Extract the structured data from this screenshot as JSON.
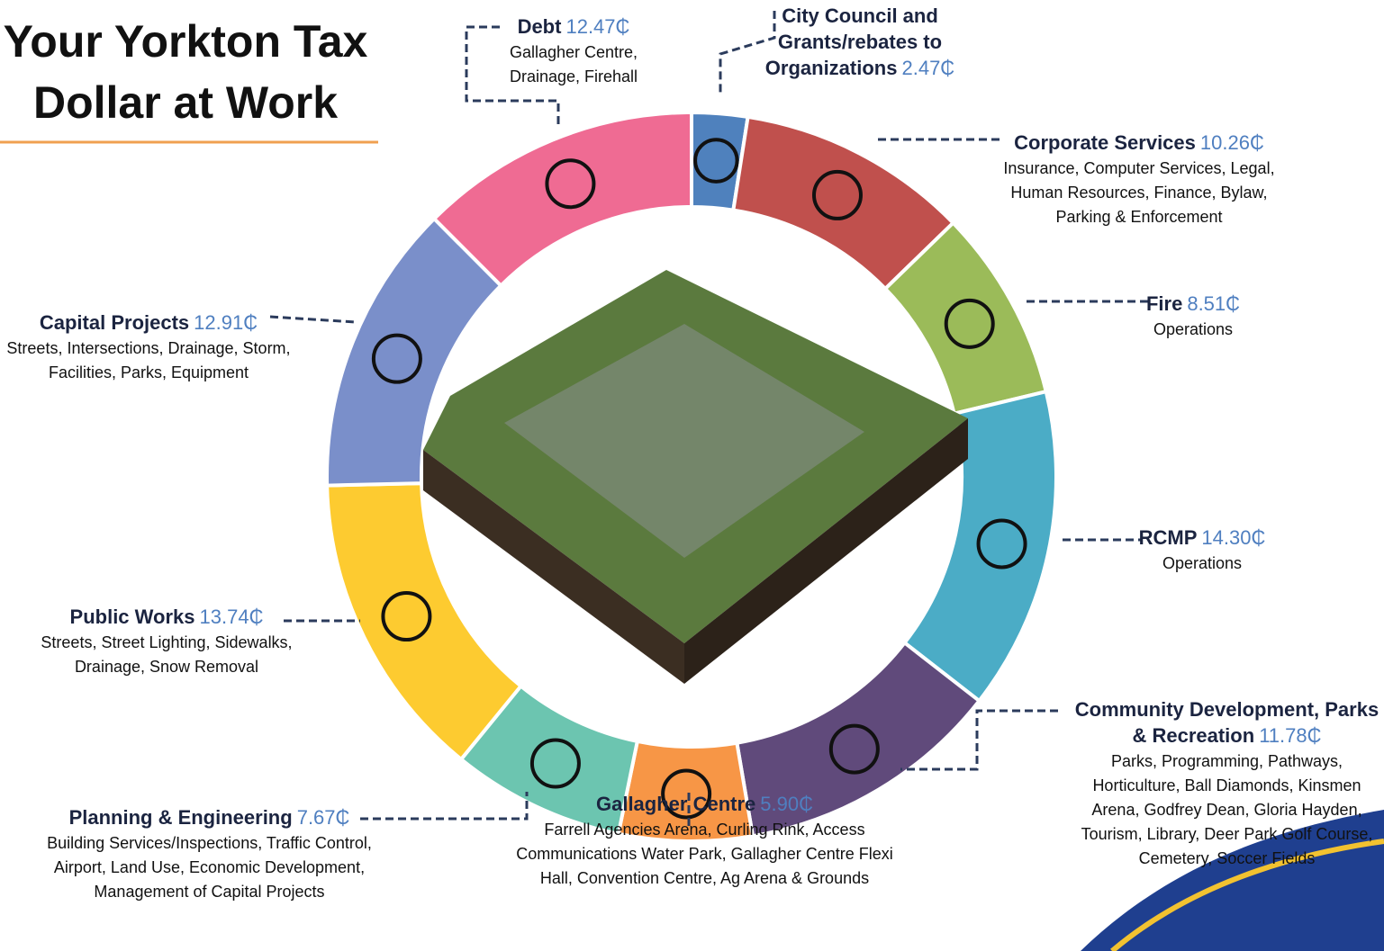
{
  "chart_data": {
    "type": "donut",
    "title": "Your Yorkton Tax Dollar at Work",
    "categories": [
      "City Council and Grants/rebates to Organizations",
      "Corporate Services",
      "Fire",
      "RCMP",
      "Community Development, Parks & Recreation",
      "Gallagher Centre",
      "Planning & Engineering",
      "Public Works",
      "Capital Projects",
      "Debt"
    ],
    "descriptions": [
      "",
      "Insurance, Computer Services, Legal, Human Resources, Finance, Bylaw, Parking & Enforcement",
      "Operations",
      "Operations",
      "Parks, Programming, Pathways, Horticulture, Ball Diamonds, Kinsmen Arena, Godfrey Dean, Gloria Hayden, Tourism, Library, Deer Park Golf Course, Cemetery, Soccer Fields",
      "Farrell Agencies Arena, Curling Rink, Access Communications Water Park, Gallagher Centre Flexi Hall, Convention Centre, Ag Arena & Grounds",
      "Building Services/Inspections, Traffic Control, Airport, Land Use, Economic Development, Management of Capital Projects",
      "Streets, Street Lighting, Sidewalks, Drainage, Snow Removal",
      "Streets, Intersections, Drainage, Storm, Facilities, Parks, Equipment",
      "Gallagher Centre, Drainage, Firehall"
    ],
    "values": [
      2.47,
      10.26,
      8.51,
      14.3,
      11.78,
      5.9,
      7.67,
      13.74,
      12.91,
      12.47
    ],
    "value_labels": [
      "2.47₵",
      "10.26₵",
      "8.51₵",
      "14.30₵",
      "11.78₵",
      "5.90₵",
      "7.67₵",
      "13.74₵",
      "12.91₵",
      "12.47₵"
    ],
    "colors": [
      "#4f81bd",
      "#c0504d",
      "#9bbb59",
      "#4bacc6",
      "#604a7b",
      "#f79646",
      "#6cc5b0",
      "#fdcb30",
      "#7a8fca",
      "#ef6b93"
    ]
  }
}
